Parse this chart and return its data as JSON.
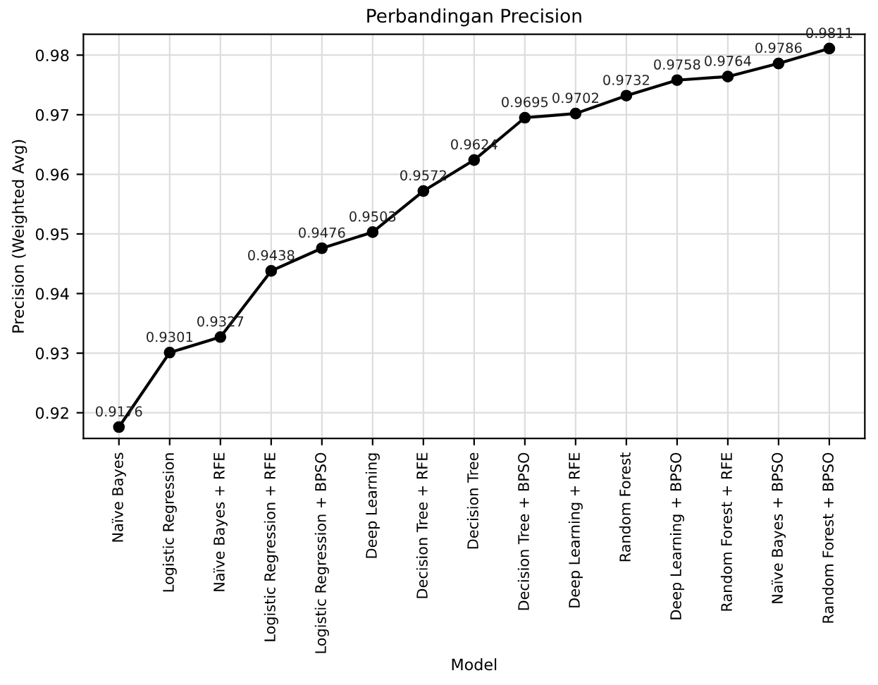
{
  "chart_data": {
    "type": "line",
    "title": "Perbandingan Precision",
    "xlabel": "Model",
    "ylabel": "Precision (Weighted Avg)",
    "categories": [
      "Naïve Bayes",
      "Logistic Regression",
      "Naïve Bayes + RFE",
      "Logistic Regression + RFE",
      "Logistic Regression + BPSO",
      "Deep Learning",
      "Decision Tree + RFE",
      "Decision Tree",
      "Decision Tree + BPSO",
      "Deep Learning + RFE",
      "Random Forest",
      "Deep Learning + BPSO",
      "Random Forest + RFE",
      "Naïve Bayes + BPSO",
      "Random Forest + BPSO"
    ],
    "series": [
      {
        "color": "#000000",
        "values": [
          0.9176,
          0.9301,
          0.9327,
          0.9438,
          0.9476,
          0.9503,
          0.9572,
          0.9624,
          0.9695,
          0.9702,
          0.9732,
          0.9758,
          0.9764,
          0.9786,
          0.9811
        ]
      }
    ],
    "ylim": [
      0.9157,
      0.9835
    ],
    "yticks": [
      0.92,
      0.93,
      0.94,
      0.95,
      0.96,
      0.97,
      0.98
    ],
    "data_labels": true,
    "grid": true,
    "marker": "circle",
    "line_style": "solid",
    "legend": false
  }
}
